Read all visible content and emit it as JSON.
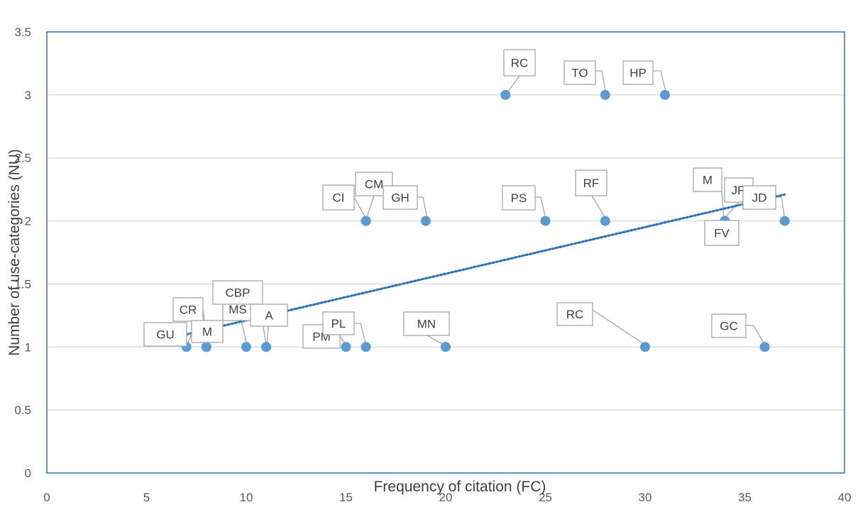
{
  "chart_data": {
    "type": "scatter",
    "title": "",
    "xlabel": "Frequency of citation (FC)",
    "ylabel": "Number of use-categories (NU)",
    "xlim": [
      0,
      40
    ],
    "ylim": [
      0,
      3.5
    ],
    "xticks": [
      0,
      5,
      10,
      15,
      20,
      25,
      30,
      35,
      40
    ],
    "yticks": [
      0,
      0.5,
      1,
      1.5,
      2,
      2.5,
      3,
      3.5
    ],
    "x_tick_labels": [
      "0",
      "5",
      "10",
      "15",
      "20",
      "25",
      "30",
      "35",
      "40"
    ],
    "y_tick_labels": [
      "0",
      "0.5",
      "1",
      "1.5",
      "2",
      "2.5",
      "3",
      "3.5"
    ],
    "grid": "horizontal",
    "legend": "none",
    "points": [
      {
        "label": "GU",
        "x": 7,
        "y": 1
      },
      {
        "label": "CR",
        "x": 8,
        "y": 1
      },
      {
        "label": "M",
        "x": 8,
        "y": 1
      },
      {
        "label": "MS",
        "x": 10,
        "y": 1
      },
      {
        "label": "CBP",
        "x": 11,
        "y": 1
      },
      {
        "label": "A",
        "x": 11,
        "y": 1
      },
      {
        "label": "PM",
        "x": 15,
        "y": 1
      },
      {
        "label": "PL",
        "x": 16,
        "y": 1
      },
      {
        "label": "MN",
        "x": 20,
        "y": 1
      },
      {
        "label": "RC",
        "x": 30,
        "y": 1
      },
      {
        "label": "GC",
        "x": 36,
        "y": 1
      },
      {
        "label": "CI",
        "x": 16,
        "y": 2
      },
      {
        "label": "CM",
        "x": 16,
        "y": 2
      },
      {
        "label": "GH",
        "x": 19,
        "y": 2
      },
      {
        "label": "PS",
        "x": 25,
        "y": 2
      },
      {
        "label": "RF",
        "x": 28,
        "y": 2
      },
      {
        "label": "M",
        "x": 34,
        "y": 2
      },
      {
        "label": "FV",
        "x": 34,
        "y": 2
      },
      {
        "label": "JR",
        "x": 34,
        "y": 2
      },
      {
        "label": "JD",
        "x": 37,
        "y": 2
      },
      {
        "label": "RC",
        "x": 23,
        "y": 3
      },
      {
        "label": "TO",
        "x": 28,
        "y": 3
      },
      {
        "label": "HP",
        "x": 31,
        "y": 3
      }
    ],
    "trendline": {
      "type": "linear",
      "style": "dotted",
      "x_start": 7,
      "y_start": 1.1,
      "x_end": 37,
      "y_end": 2.21
    },
    "colors": {
      "marker": "#5b9bd5",
      "trendline": "#2e75b6",
      "plot_border": "#2e75b6",
      "gridline": "#d9d9d9",
      "callout_line": "#a6a6a6",
      "callout_border": "#a6a6a6"
    }
  }
}
